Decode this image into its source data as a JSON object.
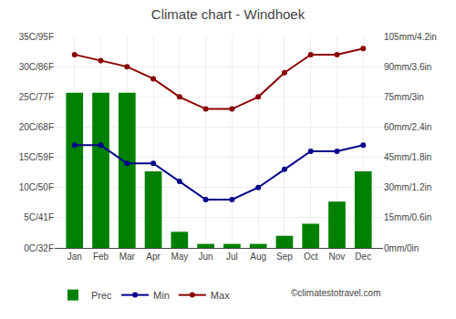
{
  "chart_data": {
    "type": "bar",
    "title": "Climate chart - Windhoek",
    "categories": [
      "Jan",
      "Feb",
      "Mar",
      "Apr",
      "May",
      "Jun",
      "Jul",
      "Aug",
      "Sep",
      "Oct",
      "Nov",
      "Dec"
    ],
    "series": [
      {
        "name": "Prec",
        "type": "bar",
        "axis": "y2",
        "color": "#008000",
        "values": [
          77,
          77,
          77,
          38,
          8,
          2,
          2,
          2,
          6,
          12,
          23,
          38
        ]
      },
      {
        "name": "Min",
        "type": "line",
        "marker": "circle",
        "color": "#00008B",
        "values": [
          17,
          17,
          14,
          14,
          11,
          8,
          8,
          10,
          13,
          16,
          16,
          17
        ]
      },
      {
        "name": "Max",
        "type": "line",
        "marker": "circle",
        "color": "#8B0000",
        "values": [
          32,
          31,
          30,
          28,
          25,
          23,
          23,
          25,
          29,
          32,
          32,
          33
        ]
      }
    ],
    "ylim": [
      0,
      35
    ],
    "yticks": [
      {
        "value": 0,
        "label": "0C/32F"
      },
      {
        "value": 5,
        "label": "5C/41F"
      },
      {
        "value": 10,
        "label": "10C/50F"
      },
      {
        "value": 15,
        "label": "15C/59F"
      },
      {
        "value": 20,
        "label": "20C/68F"
      },
      {
        "value": 25,
        "label": "25C/77F"
      },
      {
        "value": 30,
        "label": "30C/86F"
      },
      {
        "value": 35,
        "label": "35C/95F"
      }
    ],
    "y2lim": [
      0,
      105
    ],
    "y2ticks": [
      {
        "value": 0,
        "label": "0mm/0in"
      },
      {
        "value": 15,
        "label": "15mm/0.6in"
      },
      {
        "value": 30,
        "label": "30mm/1.2in"
      },
      {
        "value": 45,
        "label": "45mm/1.8in"
      },
      {
        "value": 60,
        "label": "60mm/2.4in"
      },
      {
        "value": 75,
        "label": "75mm/3in"
      },
      {
        "value": 90,
        "label": "90mm/3.6in"
      },
      {
        "value": 105,
        "label": "105mm/4.2in"
      }
    ],
    "grid": true,
    "legend": "lower left",
    "annotations": [
      "©climatestotravel.com"
    ]
  }
}
